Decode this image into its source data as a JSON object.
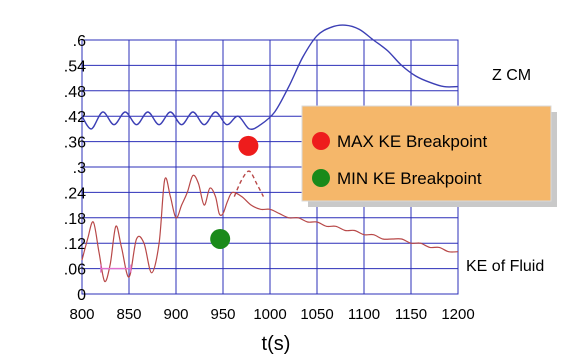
{
  "chart_data": {
    "type": "line",
    "xlabel": "t(s)",
    "xlim": [
      800,
      1200
    ],
    "ylim": [
      0,
      0.6
    ],
    "x_ticks": [
      "800",
      "850",
      "900",
      "950",
      "1000",
      "1050",
      "1100",
      "1150",
      "1200"
    ],
    "y_ticks": [
      "0",
      ".06",
      ".12",
      ".18",
      ".24",
      ".3",
      ".36",
      ".42",
      ".48",
      ".54",
      ".6"
    ],
    "grid": true,
    "colors": {
      "grid": "#2b2fb8",
      "zcm": "#3c3fb5",
      "ke": "#b84848",
      "ke_segment": "#e070d0",
      "legend_bg": "#f5b76a",
      "max_marker": "#ee1c1c",
      "min_marker": "#1a8a1a"
    },
    "series": [
      {
        "name": "Z CM",
        "x": [
          800,
          810,
          822,
          834,
          846,
          858,
          870,
          882,
          894,
          906,
          918,
          930,
          942,
          954,
          966,
          978,
          990,
          1005,
          1020,
          1035,
          1050,
          1065,
          1080,
          1095,
          1110,
          1125,
          1140,
          1155,
          1170,
          1185,
          1200
        ],
        "y": [
          0.42,
          0.39,
          0.43,
          0.4,
          0.43,
          0.4,
          0.43,
          0.4,
          0.43,
          0.4,
          0.43,
          0.4,
          0.43,
          0.4,
          0.42,
          0.39,
          0.4,
          0.43,
          0.49,
          0.56,
          0.61,
          0.63,
          0.635,
          0.625,
          0.6,
          0.575,
          0.54,
          0.515,
          0.5,
          0.49,
          0.49
        ]
      },
      {
        "name": "KE of Fluid",
        "x": [
          800,
          806,
          812,
          818,
          824,
          830,
          836,
          842,
          850,
          858,
          866,
          874,
          882,
          888,
          894,
          900,
          906,
          912,
          918,
          924,
          930,
          936,
          942,
          946,
          950,
          955,
          960,
          970,
          980,
          990,
          1000,
          1010,
          1020,
          1030,
          1040,
          1050,
          1060,
          1070,
          1080,
          1090,
          1100,
          1110,
          1120,
          1130,
          1140,
          1150,
          1160,
          1170,
          1180,
          1190,
          1200
        ],
        "y": [
          0.08,
          0.13,
          0.17,
          0.1,
          0.03,
          0.07,
          0.16,
          0.11,
          0.04,
          0.13,
          0.12,
          0.05,
          0.12,
          0.27,
          0.23,
          0.18,
          0.21,
          0.24,
          0.28,
          0.26,
          0.21,
          0.25,
          0.23,
          0.19,
          0.19,
          0.22,
          0.24,
          0.23,
          0.21,
          0.2,
          0.2,
          0.19,
          0.18,
          0.18,
          0.17,
          0.17,
          0.16,
          0.16,
          0.15,
          0.15,
          0.14,
          0.14,
          0.13,
          0.13,
          0.13,
          0.12,
          0.12,
          0.11,
          0.11,
          0.1,
          0.1
        ]
      }
    ],
    "ke_segment": {
      "x": [
        820,
        852
      ],
      "y": [
        0.06,
        0.06
      ]
    },
    "ke_dashed": {
      "x": [
        962,
        970,
        978,
        986,
        993
      ],
      "y": [
        0.23,
        0.27,
        0.29,
        0.26,
        0.23
      ]
    },
    "markers": [
      {
        "label": "MAX KE Breakpoint",
        "x": 977,
        "y": 0.35,
        "color": "#ee1c1c"
      },
      {
        "label": "MIN KE Breakpoint",
        "x": 947,
        "y": 0.13,
        "color": "#1a8a1a"
      }
    ],
    "series_labels": [
      "Z CM",
      "KE of Fluid"
    ],
    "legend": {
      "placement": "right",
      "entries": [
        "MAX KE Breakpoint",
        "MIN KE Breakpoint"
      ]
    }
  }
}
